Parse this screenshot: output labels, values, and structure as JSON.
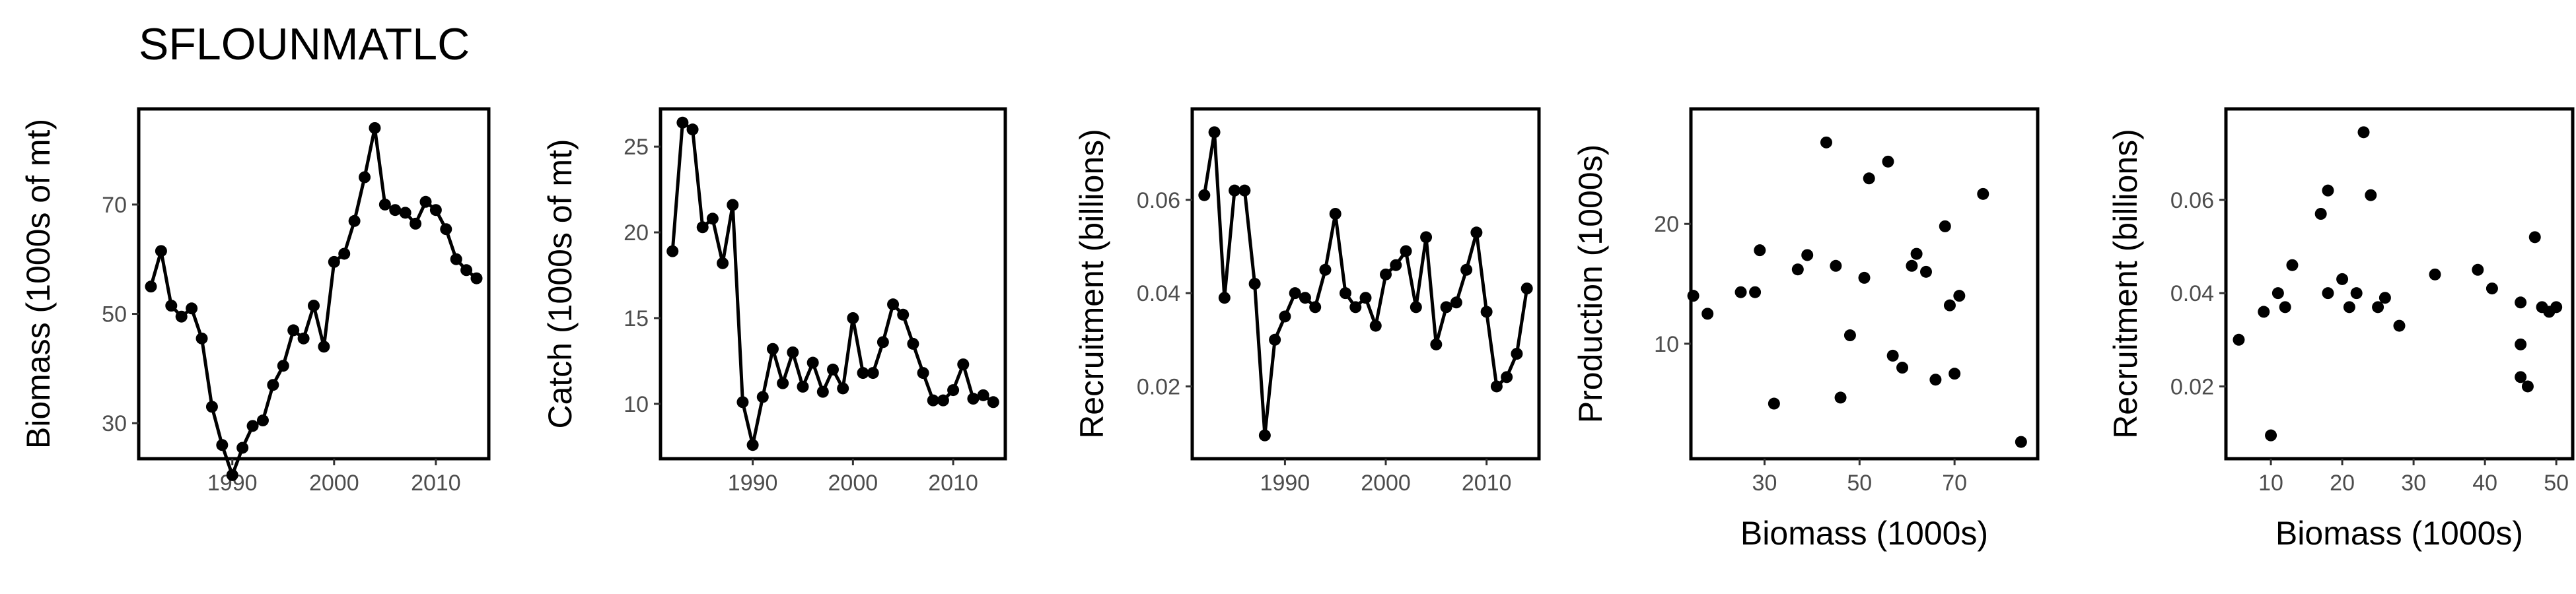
{
  "figure": {
    "title": "SFLOUNMATLC"
  },
  "chart_data": [
    {
      "type": "line",
      "xlabel": "",
      "ylabel": "Biomass (1000s of mt)",
      "xlim": [
        1980.8,
        2015.2
      ],
      "ylim": [
        23.5,
        87.5
      ],
      "xticks": [
        1990,
        2000,
        2010
      ],
      "yticks": [
        30,
        50,
        70
      ],
      "x": [
        1982,
        1983,
        1984,
        1985,
        1986,
        1987,
        1988,
        1989,
        1990,
        1991,
        1992,
        1993,
        1994,
        1995,
        1996,
        1997,
        1998,
        1999,
        2000,
        2001,
        2002,
        2003,
        2004,
        2005,
        2006,
        2007,
        2008,
        2009,
        2010,
        2011,
        2012,
        2013,
        2014
      ],
      "y": [
        55,
        61.5,
        51.5,
        49.5,
        51,
        45.5,
        33,
        26,
        20.5,
        25.5,
        29.5,
        30.5,
        37,
        40.5,
        47,
        45.5,
        51.5,
        44,
        59.5,
        61,
        67,
        75,
        84,
        70,
        69,
        68.5,
        66.5,
        70.5,
        69,
        65.5,
        60,
        58,
        56.5
      ]
    },
    {
      "type": "line",
      "xlabel": "",
      "ylabel": "Catch (1000s of mt)",
      "xlim": [
        1980.8,
        2015.2
      ],
      "ylim": [
        6.8,
        27.2
      ],
      "xticks": [
        1990,
        2000,
        2010
      ],
      "yticks": [
        10,
        15,
        20,
        25
      ],
      "x": [
        1982,
        1983,
        1984,
        1985,
        1986,
        1987,
        1988,
        1989,
        1990,
        1991,
        1992,
        1993,
        1994,
        1995,
        1996,
        1997,
        1998,
        1999,
        2000,
        2001,
        2002,
        2003,
        2004,
        2005,
        2006,
        2007,
        2008,
        2009,
        2010,
        2011,
        2012,
        2013,
        2014
      ],
      "y": [
        18.9,
        26.4,
        26,
        20.3,
        20.8,
        18.2,
        21.6,
        10.1,
        7.6,
        10.4,
        13.2,
        11.2,
        13,
        11,
        12.4,
        10.7,
        12,
        10.9,
        15,
        11.8,
        11.8,
        13.6,
        15.8,
        15.2,
        13.5,
        11.8,
        10.2,
        10.2,
        10.8,
        12.3,
        10.3,
        10.5,
        10.1
      ]
    },
    {
      "type": "line",
      "xlabel": "",
      "ylabel": "Recruitment (billions)",
      "xlim": [
        1980.8,
        2015.2
      ],
      "ylim": [
        0.0045,
        0.0795
      ],
      "xticks": [
        1990,
        2000,
        2010
      ],
      "yticks": [
        0.02,
        0.04,
        0.06
      ],
      "ytick_labels": [
        "0.02",
        "0.04",
        "0.06"
      ],
      "x": [
        1982,
        1983,
        1984,
        1985,
        1986,
        1987,
        1988,
        1989,
        1990,
        1991,
        1992,
        1993,
        1994,
        1995,
        1996,
        1997,
        1998,
        1999,
        2000,
        2001,
        2002,
        2003,
        2004,
        2005,
        2006,
        2007,
        2008,
        2009,
        2010,
        2011,
        2012,
        2013,
        2014
      ],
      "y": [
        0.061,
        0.0745,
        0.039,
        0.062,
        0.062,
        0.042,
        0.0095,
        0.03,
        0.035,
        0.04,
        0.039,
        0.037,
        0.045,
        0.057,
        0.04,
        0.037,
        0.039,
        0.033,
        0.044,
        0.046,
        0.049,
        0.037,
        0.052,
        0.029,
        0.037,
        0.038,
        0.045,
        0.053,
        0.036,
        0.02,
        0.022,
        0.027,
        0.041
      ]
    },
    {
      "type": "scatter",
      "xlabel": "Biomass (1000s)",
      "ylabel": "Production (1000s)",
      "xlim": [
        14.5,
        87.5
      ],
      "ylim": [
        0.4,
        29.6
      ],
      "xticks": [
        30,
        50,
        70
      ],
      "yticks": [
        10,
        20
      ],
      "x": [
        15,
        18,
        25,
        28,
        29,
        32,
        37,
        39,
        43,
        45,
        46,
        48,
        51,
        52,
        56,
        57,
        59,
        61,
        62,
        64,
        66,
        68,
        69,
        70,
        71,
        76,
        84
      ],
      "y": [
        14,
        12.5,
        14.3,
        14.3,
        17.8,
        5,
        16.2,
        17.4,
        26.8,
        16.5,
        5.5,
        10.7,
        15.5,
        23.8,
        25.2,
        9,
        8,
        16.5,
        17.5,
        16,
        7,
        19.8,
        13.2,
        7.5,
        14,
        22.5,
        1.8
      ]
    },
    {
      "type": "scatter",
      "xlabel": "Biomass (1000s)",
      "ylabel": "Recruitment (billions)",
      "xlim": [
        3.7,
        52.3
      ],
      "ylim": [
        0.0045,
        0.0795
      ],
      "xticks": [
        10,
        20,
        30,
        40,
        50
      ],
      "yticks": [
        0.02,
        0.04,
        0.06
      ],
      "ytick_labels": [
        "0.02",
        "0.04",
        "0.06"
      ],
      "x": [
        5.5,
        9,
        10,
        11,
        12,
        13,
        17,
        18,
        18,
        20,
        21,
        22,
        23,
        24,
        25,
        26,
        28,
        33,
        39,
        41,
        45,
        45,
        45,
        46,
        47,
        48,
        49,
        50
      ],
      "y": [
        0.03,
        0.036,
        0.0095,
        0.04,
        0.037,
        0.046,
        0.057,
        0.062,
        0.04,
        0.043,
        0.037,
        0.04,
        0.0745,
        0.061,
        0.037,
        0.039,
        0.033,
        0.044,
        0.045,
        0.041,
        0.038,
        0.029,
        0.022,
        0.02,
        0.052,
        0.037,
        0.036,
        0.037
      ]
    }
  ]
}
